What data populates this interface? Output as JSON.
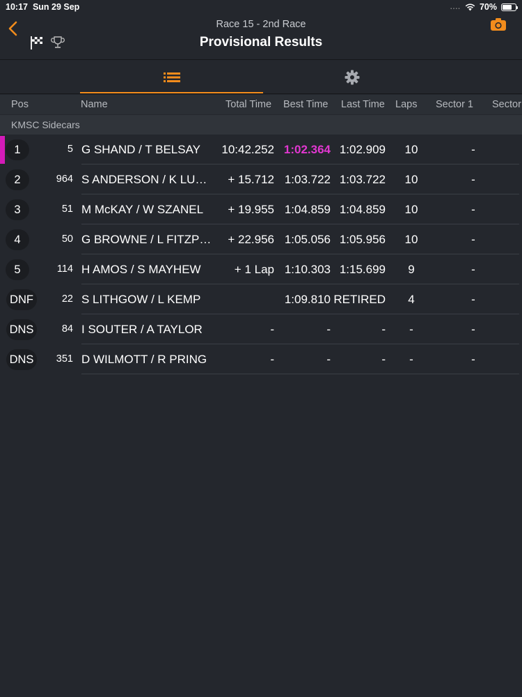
{
  "status": {
    "time": "10:17",
    "date": "Sun 29 Sep",
    "signal": "....",
    "battery": "70%"
  },
  "header": {
    "subtitle": "Race 15 - 2nd Race",
    "title": "Provisional Results"
  },
  "icons": {
    "back": "chevron-left-icon",
    "flag": "checkered-flag-icon",
    "trophy": "trophy-icon",
    "camera": "camera-icon",
    "list": "list-icon",
    "settings": "gear-icon"
  },
  "colors": {
    "accent": "#f28c1c",
    "fastest": "#e137d0",
    "background": "#24272d"
  },
  "columns": [
    "Pos",
    "Name",
    "Total Time",
    "Best Time",
    "Last Time",
    "Laps",
    "Sector 1",
    "Sector"
  ],
  "group": "KMSC Sidecars",
  "rows": [
    {
      "pos": "1",
      "num": "5",
      "name": "G SHAND / T BELSAY",
      "total": "10:42.252",
      "best": "1:02.364",
      "last": "1:02.909",
      "laps": "10",
      "s1": "-"
    },
    {
      "pos": "2",
      "num": "964",
      "name": "S ANDERSON /  K LU…",
      "total": "+ 15.712",
      "best": "1:03.722",
      "last": "1:03.722",
      "laps": "10",
      "s1": "-"
    },
    {
      "pos": "3",
      "num": "51",
      "name": "M McKAY / W SZANEL",
      "total": "+ 19.955",
      "best": "1:04.859",
      "last": "1:04.859",
      "laps": "10",
      "s1": "-"
    },
    {
      "pos": "4",
      "num": "50",
      "name": "G BROWNE / L FITZP…",
      "total": "+ 22.956",
      "best": "1:05.056",
      "last": "1:05.956",
      "laps": "10",
      "s1": "-"
    },
    {
      "pos": "5",
      "num": "114",
      "name": "H AMOS / S MAYHEW",
      "total": "+ 1 Lap",
      "best": "1:10.303",
      "last": "1:15.699",
      "laps": "9",
      "s1": "-"
    },
    {
      "pos": "DNF",
      "num": "22",
      "name": "S LITHGOW / L KEMP",
      "total": "",
      "best": "1:09.810",
      "last": "RETIRED",
      "laps": "4",
      "s1": "-"
    },
    {
      "pos": "DNS",
      "num": "84",
      "name": "I SOUTER / A TAYLOR",
      "total": "-",
      "best": "-",
      "last": "-",
      "laps": "-",
      "s1": "-"
    },
    {
      "pos": "DNS",
      "num": "351",
      "name": "D WILMOTT / R PRING",
      "total": "-",
      "best": "-",
      "last": "-",
      "laps": "-",
      "s1": "-"
    }
  ]
}
